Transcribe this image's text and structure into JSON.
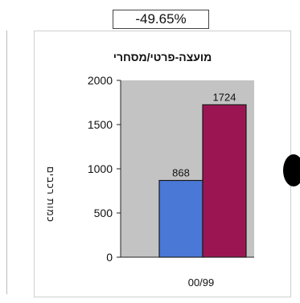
{
  "change_label": "-49.65%",
  "chart_data": {
    "type": "bar",
    "title": "מועצה-פרטי/מסחרי",
    "ylabel": "כמות רכבים",
    "xlabel": "",
    "categories": [
      "00/99"
    ],
    "series": [
      {
        "name": "",
        "values": [
          868
        ],
        "color": "#4a78d6"
      },
      {
        "name": "",
        "values": [
          1724
        ],
        "color": "#9b1553"
      }
    ],
    "data_labels": [
      "868",
      "1724"
    ],
    "ylim": [
      0,
      2000
    ],
    "yticks": [
      "0",
      "500",
      "1000",
      "1500",
      "2000"
    ],
    "grid": false,
    "legend": "none",
    "plot_background": "#c3c3c3"
  }
}
